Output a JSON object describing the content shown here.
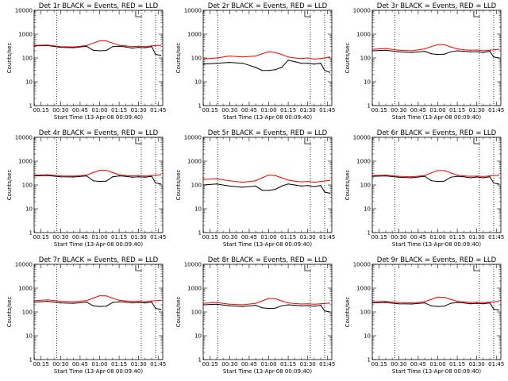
{
  "chart_data": [
    {
      "type": "line",
      "title": "Det 1r BLACK = Events, RED = LLD",
      "xlabel": "Start Time (13-Apr-08 00:09:40)",
      "ylabel": "Counts/sec",
      "yscale": "log",
      "ylim": [
        1,
        10000
      ],
      "x_tick_labels": [
        "00:15",
        "00:30",
        "00:45",
        "01:00",
        "01:15",
        "01:30",
        "01:45"
      ],
      "y_tick_labels": [
        "1",
        "10",
        "100",
        "1000",
        "10000"
      ],
      "grid": false,
      "vertical_markers": [
        "00:27",
        "01:32",
        "01:43"
      ],
      "series": [
        {
          "name": "Events",
          "color": "#000000",
          "x": [
            "00:10",
            "00:20",
            "00:30",
            "00:40",
            "00:50",
            "00:55",
            "01:00",
            "01:05",
            "01:10",
            "01:15",
            "01:20",
            "01:25",
            "01:30",
            "01:35",
            "01:40",
            "01:43",
            "01:47"
          ],
          "values": [
            320,
            330,
            280,
            270,
            310,
            210,
            200,
            205,
            300,
            310,
            290,
            260,
            280,
            270,
            300,
            140,
            130
          ]
        },
        {
          "name": "LLD",
          "color": "#ff0000",
          "x": [
            "00:10",
            "00:20",
            "00:30",
            "00:40",
            "00:50",
            "00:55",
            "01:00",
            "01:05",
            "01:10",
            "01:15",
            "01:20",
            "01:25",
            "01:30",
            "01:35",
            "01:40",
            "01:47"
          ],
          "values": [
            340,
            350,
            300,
            290,
            330,
            420,
            520,
            520,
            420,
            340,
            320,
            300,
            310,
            300,
            320,
            340
          ]
        }
      ]
    },
    {
      "type": "line",
      "title": "Det 2r BLACK = Events, RED = LLD",
      "xlabel": "Start Time (13-Apr-08 00:09:40)",
      "ylabel": "Counts/sec",
      "yscale": "log",
      "ylim": [
        1,
        10000
      ],
      "x_tick_labels": [
        "00:15",
        "00:30",
        "00:45",
        "01:00",
        "01:15",
        "01:30",
        "01:45"
      ],
      "y_tick_labels": [
        "1",
        "10",
        "100",
        "1000",
        "10000"
      ],
      "grid": false,
      "vertical_markers": [
        "00:21",
        "01:32",
        "01:43"
      ],
      "series": [
        {
          "name": "Events",
          "color": "#000000",
          "x": [
            "00:10",
            "00:20",
            "00:30",
            "00:40",
            "00:50",
            "00:55",
            "01:00",
            "01:05",
            "01:10",
            "01:15",
            "01:20",
            "01:25",
            "01:30",
            "01:35",
            "01:40",
            "01:43",
            "01:47"
          ],
          "values": [
            55,
            60,
            65,
            60,
            40,
            30,
            30,
            32,
            40,
            80,
            70,
            60,
            60,
            55,
            60,
            30,
            25
          ]
        },
        {
          "name": "LLD",
          "color": "#ff0000",
          "x": [
            "00:10",
            "00:20",
            "00:30",
            "00:40",
            "00:50",
            "00:55",
            "01:00",
            "01:05",
            "01:10",
            "01:15",
            "01:20",
            "01:25",
            "01:30",
            "01:35",
            "01:40",
            "01:47"
          ],
          "values": [
            90,
            100,
            120,
            110,
            120,
            150,
            180,
            170,
            140,
            110,
            100,
            95,
            100,
            90,
            95,
            110
          ]
        }
      ]
    },
    {
      "type": "line",
      "title": "Det 3r BLACK = Events, RED = LLD",
      "xlabel": "Start Time (13-Apr-08 00:09:40)",
      "ylabel": "Counts/sec",
      "yscale": "log",
      "ylim": [
        1,
        10000
      ],
      "x_tick_labels": [
        "00:15",
        "00:30",
        "00:45",
        "01:00",
        "01:15",
        "01:30",
        "01:45"
      ],
      "y_tick_labels": [
        "1",
        "10",
        "100",
        "1000",
        "10000"
      ],
      "grid": false,
      "vertical_markers": [
        "00:27",
        "01:32",
        "01:43"
      ],
      "series": [
        {
          "name": "Events",
          "color": "#000000",
          "x": [
            "00:10",
            "00:20",
            "00:30",
            "00:40",
            "00:50",
            "00:55",
            "01:00",
            "01:05",
            "01:10",
            "01:15",
            "01:20",
            "01:25",
            "01:30",
            "01:35",
            "01:40",
            "01:43",
            "01:47"
          ],
          "values": [
            200,
            210,
            180,
            170,
            190,
            150,
            140,
            145,
            180,
            200,
            190,
            180,
            180,
            170,
            190,
            110,
            100
          ]
        },
        {
          "name": "LLD",
          "color": "#ff0000",
          "x": [
            "00:10",
            "00:20",
            "00:30",
            "00:40",
            "00:50",
            "00:55",
            "01:00",
            "01:05",
            "01:10",
            "01:15",
            "01:20",
            "01:25",
            "01:30",
            "01:35",
            "01:40",
            "01:47"
          ],
          "values": [
            230,
            250,
            210,
            200,
            240,
            300,
            360,
            360,
            290,
            240,
            220,
            210,
            215,
            200,
            210,
            230
          ]
        }
      ]
    },
    {
      "type": "line",
      "title": "Det 4r BLACK = Events, RED = LLD",
      "xlabel": "Start Time (13-Apr-08 00:09:40)",
      "ylabel": "Counts/sec",
      "yscale": "log",
      "ylim": [
        1,
        10000
      ],
      "x_tick_labels": [
        "00:15",
        "00:30",
        "00:45",
        "01:00",
        "01:15",
        "01:30",
        "01:45"
      ],
      "y_tick_labels": [
        "1",
        "10",
        "100",
        "1000",
        "10000"
      ],
      "grid": false,
      "vertical_markers": [
        "00:27",
        "01:32",
        "01:43"
      ],
      "series": [
        {
          "name": "Events",
          "color": "#000000",
          "x": [
            "00:10",
            "00:20",
            "00:30",
            "00:40",
            "00:50",
            "00:55",
            "01:00",
            "01:05",
            "01:10",
            "01:15",
            "01:20",
            "01:25",
            "01:30",
            "01:35",
            "01:40",
            "01:43",
            "01:47"
          ],
          "values": [
            240,
            250,
            220,
            215,
            240,
            150,
            140,
            145,
            220,
            240,
            230,
            210,
            220,
            210,
            230,
            120,
            110
          ]
        },
        {
          "name": "LLD",
          "color": "#ff0000",
          "x": [
            "00:10",
            "00:20",
            "00:30",
            "00:40",
            "00:50",
            "00:55",
            "01:00",
            "01:05",
            "01:10",
            "01:15",
            "01:20",
            "01:25",
            "01:30",
            "01:35",
            "01:40",
            "01:47"
          ],
          "values": [
            260,
            270,
            240,
            235,
            260,
            330,
            410,
            410,
            330,
            270,
            250,
            240,
            245,
            235,
            250,
            270
          ]
        }
      ]
    },
    {
      "type": "line",
      "title": "Det 5r BLACK = Events, RED = LLD",
      "xlabel": "Start Time (13-Apr-08 00:09:40)",
      "ylabel": "Counts/sec",
      "yscale": "log",
      "ylim": [
        1,
        10000
      ],
      "x_tick_labels": [
        "00:15",
        "00:30",
        "00:45",
        "01:00",
        "01:15",
        "01:30",
        "01:45"
      ],
      "y_tick_labels": [
        "1",
        "10",
        "100",
        "1000",
        "10000"
      ],
      "grid": false,
      "vertical_markers": [
        "00:21",
        "01:32",
        "01:43"
      ],
      "series": [
        {
          "name": "Events",
          "color": "#000000",
          "x": [
            "00:10",
            "00:20",
            "00:30",
            "00:40",
            "00:50",
            "00:55",
            "01:00",
            "01:05",
            "01:10",
            "01:15",
            "01:20",
            "01:25",
            "01:30",
            "01:35",
            "01:40",
            "01:43",
            "01:47"
          ],
          "values": [
            100,
            110,
            90,
            80,
            90,
            60,
            60,
            65,
            90,
            110,
            100,
            90,
            95,
            85,
            95,
            50,
            45
          ]
        },
        {
          "name": "LLD",
          "color": "#ff0000",
          "x": [
            "00:10",
            "00:20",
            "00:30",
            "00:40",
            "00:50",
            "00:55",
            "01:00",
            "01:05",
            "01:10",
            "01:15",
            "01:20",
            "01:25",
            "01:30",
            "01:35",
            "01:40",
            "01:47"
          ],
          "values": [
            170,
            180,
            150,
            130,
            150,
            200,
            260,
            250,
            200,
            160,
            145,
            135,
            140,
            130,
            140,
            155
          ]
        }
      ]
    },
    {
      "type": "line",
      "title": "Det 6r BLACK = Events, RED = LLD",
      "xlabel": "Start Time (13-Apr-08 00:09:40)",
      "ylabel": "Counts/sec",
      "yscale": "log",
      "ylim": [
        1,
        10000
      ],
      "x_tick_labels": [
        "00:15",
        "00:30",
        "00:45",
        "01:00",
        "01:15",
        "01:30",
        "01:45"
      ],
      "y_tick_labels": [
        "1",
        "10",
        "100",
        "1000",
        "10000"
      ],
      "grid": false,
      "vertical_markers": [
        "00:27",
        "01:32",
        "01:43"
      ],
      "series": [
        {
          "name": "Events",
          "color": "#000000",
          "x": [
            "00:10",
            "00:20",
            "00:30",
            "00:40",
            "00:50",
            "00:55",
            "01:00",
            "01:05",
            "01:10",
            "01:15",
            "01:20",
            "01:25",
            "01:30",
            "01:35",
            "01:40",
            "01:43",
            "01:47"
          ],
          "values": [
            230,
            240,
            210,
            200,
            230,
            150,
            140,
            145,
            210,
            230,
            220,
            200,
            215,
            200,
            220,
            120,
            110
          ]
        },
        {
          "name": "LLD",
          "color": "#ff0000",
          "x": [
            "00:10",
            "00:20",
            "00:30",
            "00:40",
            "00:50",
            "00:55",
            "01:00",
            "01:05",
            "01:10",
            "01:15",
            "01:20",
            "01:25",
            "01:30",
            "01:35",
            "01:40",
            "01:47"
          ],
          "values": [
            250,
            260,
            230,
            220,
            250,
            320,
            400,
            400,
            320,
            260,
            240,
            230,
            235,
            225,
            240,
            255
          ]
        }
      ]
    },
    {
      "type": "line",
      "title": "Det 7r BLACK = Events, RED = LLD",
      "xlabel": "Start Time (13-Apr-08 00:09:40)",
      "ylabel": "Counts/sec",
      "yscale": "log",
      "ylim": [
        1,
        10000
      ],
      "x_tick_labels": [
        "00:15",
        "00:30",
        "00:45",
        "01:00",
        "01:15",
        "01:30",
        "01:45"
      ],
      "y_tick_labels": [
        "1",
        "10",
        "100",
        "1000",
        "10000"
      ],
      "grid": false,
      "vertical_markers": [
        "00:27",
        "01:32",
        "01:43"
      ],
      "series": [
        {
          "name": "Events",
          "color": "#000000",
          "x": [
            "00:10",
            "00:20",
            "00:30",
            "00:40",
            "00:50",
            "00:55",
            "01:00",
            "01:05",
            "01:10",
            "01:15",
            "01:20",
            "01:25",
            "01:30",
            "01:35",
            "01:40",
            "01:43",
            "01:47"
          ],
          "values": [
            260,
            280,
            240,
            230,
            260,
            180,
            170,
            175,
            250,
            270,
            260,
            240,
            250,
            240,
            260,
            140,
            130
          ]
        },
        {
          "name": "LLD",
          "color": "#ff0000",
          "x": [
            "00:10",
            "00:20",
            "00:30",
            "00:40",
            "00:50",
            "00:55",
            "01:00",
            "01:05",
            "01:10",
            "01:15",
            "01:20",
            "01:25",
            "01:30",
            "01:35",
            "01:40",
            "01:47"
          ],
          "values": [
            300,
            320,
            280,
            270,
            300,
            380,
            480,
            470,
            380,
            310,
            290,
            280,
            285,
            270,
            290,
            310
          ]
        }
      ]
    },
    {
      "type": "line",
      "title": "Det 8r BLACK = Events, RED = LLD",
      "xlabel": "Start Time (13-Apr-08 00:09:40)",
      "ylabel": "Counts/sec",
      "yscale": "log",
      "ylim": [
        1,
        10000
      ],
      "x_tick_labels": [
        "00:15",
        "00:30",
        "00:45",
        "01:00",
        "01:15",
        "01:30",
        "01:45"
      ],
      "y_tick_labels": [
        "1",
        "10",
        "100",
        "1000",
        "10000"
      ],
      "grid": false,
      "vertical_markers": [
        "00:21",
        "01:32",
        "01:43"
      ],
      "series": [
        {
          "name": "Events",
          "color": "#000000",
          "x": [
            "00:10",
            "00:20",
            "00:30",
            "00:40",
            "00:50",
            "00:55",
            "01:00",
            "01:05",
            "01:10",
            "01:15",
            "01:20",
            "01:25",
            "01:30",
            "01:35",
            "01:40",
            "01:43",
            "01:47"
          ],
          "values": [
            200,
            210,
            180,
            170,
            190,
            150,
            140,
            145,
            180,
            200,
            190,
            180,
            185,
            175,
            190,
            110,
            100
          ]
        },
        {
          "name": "LLD",
          "color": "#ff0000",
          "x": [
            "00:10",
            "00:20",
            "00:30",
            "00:40",
            "00:50",
            "00:55",
            "01:00",
            "01:05",
            "01:10",
            "01:15",
            "01:20",
            "01:25",
            "01:30",
            "01:35",
            "01:40",
            "01:47"
          ],
          "values": [
            230,
            250,
            210,
            200,
            230,
            290,
            370,
            360,
            290,
            240,
            225,
            215,
            220,
            210,
            220,
            235
          ]
        }
      ]
    },
    {
      "type": "line",
      "title": "Det 9r BLACK = Events, RED = LLD",
      "xlabel": "Start Time (13-Apr-08 00:09:40)",
      "ylabel": "Counts/sec",
      "yscale": "log",
      "ylim": [
        1,
        10000
      ],
      "x_tick_labels": [
        "00:15",
        "00:30",
        "00:45",
        "01:00",
        "01:15",
        "01:30",
        "01:45"
      ],
      "y_tick_labels": [
        "1",
        "10",
        "100",
        "1000",
        "10000"
      ],
      "grid": false,
      "vertical_markers": [
        "00:27",
        "01:32",
        "01:43"
      ],
      "series": [
        {
          "name": "Events",
          "color": "#000000",
          "x": [
            "00:10",
            "00:20",
            "00:30",
            "00:40",
            "00:50",
            "00:55",
            "01:00",
            "01:05",
            "01:10",
            "01:15",
            "01:20",
            "01:25",
            "01:30",
            "01:35",
            "01:40",
            "01:43",
            "01:47"
          ],
          "values": [
            240,
            250,
            220,
            215,
            240,
            180,
            170,
            175,
            230,
            250,
            240,
            220,
            230,
            220,
            240,
            130,
            120
          ]
        },
        {
          "name": "LLD",
          "color": "#ff0000",
          "x": [
            "00:10",
            "00:20",
            "00:30",
            "00:40",
            "00:50",
            "00:55",
            "01:00",
            "01:05",
            "01:10",
            "01:15",
            "01:20",
            "01:25",
            "01:30",
            "01:35",
            "01:40",
            "01:47"
          ],
          "values": [
            270,
            280,
            250,
            240,
            270,
            340,
            420,
            410,
            340,
            280,
            265,
            250,
            255,
            245,
            260,
            275
          ]
        }
      ]
    }
  ]
}
